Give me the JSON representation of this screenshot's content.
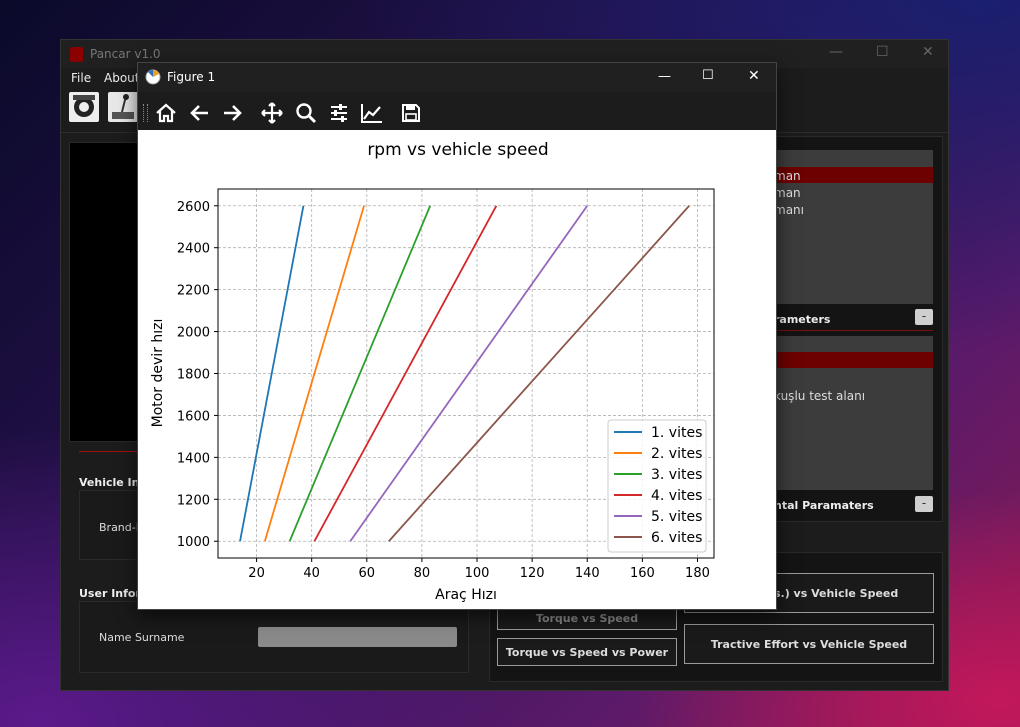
{
  "app": {
    "title": "Pancar v1.0",
    "menu": [
      "File",
      "About"
    ],
    "right_panel": {
      "list1_items": [
        "man",
        "man",
        "manı"
      ],
      "params_label": "rameters",
      "list2_text": "kuşlu test alanı",
      "env_params_label": "ntal Paramaters"
    },
    "left_panel": {
      "vehicle_info_label": "Vehicle Info",
      "brand_label": "Brand-I",
      "user_info_label": "User Inform",
      "name_label": "Name Surname",
      "name_value": ""
    },
    "buttons": {
      "tractive_no_res": "ithout res.) vs Vehicle Speed",
      "torque_vs_speed": "Torque vs Speed",
      "tractive_effort": "Tractive Effort vs Vehicle Speed",
      "torque_speed_power": "Torque vs Speed vs Power"
    }
  },
  "figure": {
    "window_title": "Figure 1",
    "toolbar_icons": [
      "home-icon",
      "back-arrow-icon",
      "forward-arrow-icon",
      "pan-icon",
      "zoom-icon",
      "subplots-config-icon",
      "axes-edit-icon",
      "save-icon"
    ]
  },
  "chart_data": {
    "type": "line",
    "title": "rpm vs vehicle speed",
    "xlabel": "Araç Hızı",
    "ylabel": "Motor devir hızı",
    "xlim": [
      6,
      186
    ],
    "ylim": [
      920,
      2680
    ],
    "xticks": [
      20,
      40,
      60,
      80,
      100,
      120,
      140,
      160,
      180
    ],
    "yticks": [
      1000,
      1200,
      1400,
      1600,
      1800,
      2000,
      2200,
      2400,
      2600
    ],
    "grid": true,
    "legend_position": "lower-right",
    "series": [
      {
        "name": "1. vites",
        "color": "#1f77b4",
        "x": [
          14,
          37
        ],
        "y": [
          1000,
          2600
        ]
      },
      {
        "name": "2. vites",
        "color": "#ff7f0e",
        "x": [
          23,
          59
        ],
        "y": [
          1000,
          2600
        ]
      },
      {
        "name": "3. vites",
        "color": "#2ca02c",
        "x": [
          32,
          83
        ],
        "y": [
          1000,
          2600
        ]
      },
      {
        "name": "4. vites",
        "color": "#d62728",
        "x": [
          41,
          107
        ],
        "y": [
          1000,
          2600
        ]
      },
      {
        "name": "5. vites",
        "color": "#9467bd",
        "x": [
          54,
          140
        ],
        "y": [
          1000,
          2600
        ]
      },
      {
        "name": "6. vites",
        "color": "#8c564b",
        "x": [
          68,
          177
        ],
        "y": [
          1000,
          2600
        ]
      }
    ]
  }
}
